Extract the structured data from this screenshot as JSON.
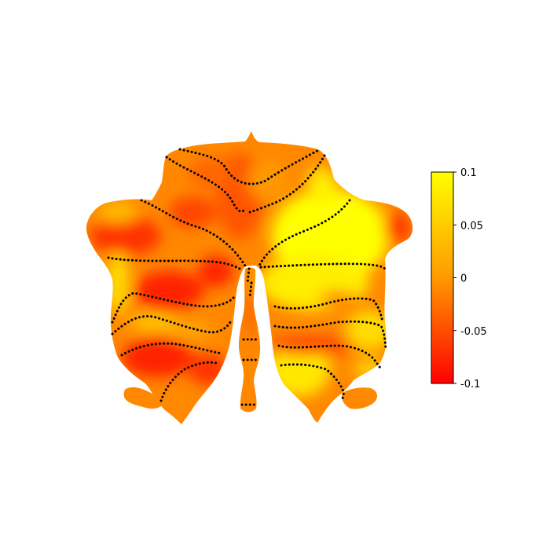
{
  "figure": {
    "type": "cerebellar-flatmap",
    "colormap": "hot-like red-orange-yellow",
    "color_low": "#ff0000",
    "color_mid": "#ff9900",
    "color_high": "#ffff00",
    "boundary_style": "dotted",
    "boundary_color": "#000000"
  },
  "colorbar": {
    "min": -0.1,
    "max": 0.1,
    "ticks": [
      {
        "value": 0.1,
        "label": "0.1"
      },
      {
        "value": 0.05,
        "label": "0.05"
      },
      {
        "value": 0,
        "label": "0"
      },
      {
        "value": -0.05,
        "label": "-0.05"
      },
      {
        "value": -0.1,
        "label": "-0.1"
      }
    ]
  }
}
